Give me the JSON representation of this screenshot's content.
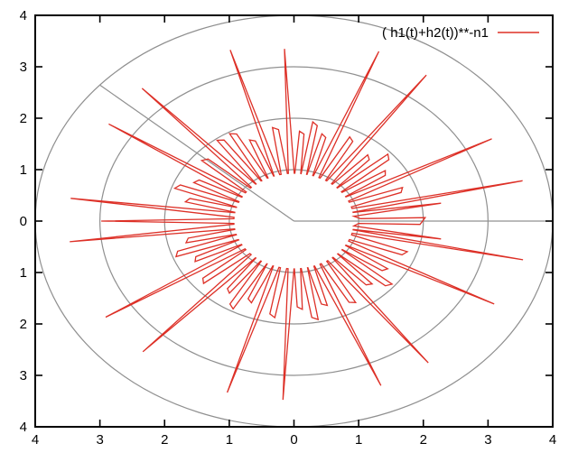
{
  "chart_data": {
    "type": "polar-line",
    "title": "",
    "legend_position": "top-right-inside",
    "grid_on": true,
    "xlim": [
      -4,
      4
    ],
    "ylim": [
      -4,
      4
    ],
    "x_tick_labels": [
      "4",
      "3",
      "2",
      "1",
      "0",
      "1",
      "2",
      "3",
      "4"
    ],
    "y_tick_labels": [
      "4",
      "3",
      "2",
      "1",
      "0",
      "1",
      "2",
      "3",
      "4"
    ],
    "r_gridlines": [
      1,
      2,
      3,
      4
    ],
    "radial_gridlines_deg": [
      0,
      138.6
    ],
    "grid_color": "#909090",
    "axis_color": "#000000",
    "background_color": "#ffffff",
    "series": [
      {
        "name": "( h1(t)+h2(t))**-n1",
        "color": "#dd3027",
        "style": "lines",
        "base_r": 0.93,
        "petals_format": [
          "angle_deg",
          "tip_r",
          "type: p=pointed spike, f=flat-top short petal, s=flat sliver"
        ],
        "petals": [
          [
            0,
            2.03,
            "s"
          ],
          [
            8.7,
            2.3,
            "p"
          ],
          [
            12.5,
            3.62,
            "p"
          ],
          [
            20.2,
            1.8,
            "f"
          ],
          [
            27.6,
            3.45,
            "p"
          ],
          [
            33.8,
            1.72,
            "f"
          ],
          [
            40.8,
            1.95,
            "f"
          ],
          [
            47.4,
            1.72,
            "f"
          ],
          [
            54.2,
            3.5,
            "p"
          ],
          [
            61.2,
            1.85,
            "f"
          ],
          [
            68.3,
            3.55,
            "p"
          ],
          [
            74.8,
            1.75,
            "f"
          ],
          [
            80.5,
            1.95,
            "f"
          ],
          [
            86.2,
            1.75,
            "f"
          ],
          [
            92.5,
            3.35,
            "p"
          ],
          [
            99.3,
            1.85,
            "f"
          ],
          [
            106.5,
            3.47,
            "p"
          ],
          [
            112.5,
            1.72,
            "f"
          ],
          [
            119.3,
            1.97,
            "f"
          ],
          [
            126.1,
            1.97,
            "f"
          ],
          [
            132.3,
            3.49,
            "p"
          ],
          [
            139.4,
            1.85,
            "f"
          ],
          [
            146.6,
            3.43,
            "p"
          ],
          [
            153.1,
            1.72,
            "f"
          ],
          [
            159.9,
            1.95,
            "f"
          ],
          [
            166.4,
            1.72,
            "f"
          ],
          [
            172.7,
            3.48,
            "p"
          ],
          [
            180,
            2.98,
            "p"
          ],
          [
            186.6,
            3.49,
            "p"
          ],
          [
            193.1,
            1.72,
            "f"
          ],
          [
            199.7,
            1.95,
            "f"
          ],
          [
            206.2,
            1.72,
            "f"
          ],
          [
            212.7,
            3.46,
            "p"
          ],
          [
            219.9,
            1.85,
            "f"
          ],
          [
            227.4,
            3.45,
            "p"
          ],
          [
            233.5,
            1.72,
            "f"
          ],
          [
            240.1,
            1.95,
            "f"
          ],
          [
            246.5,
            1.72,
            "f"
          ],
          [
            252.8,
            3.49,
            "p"
          ],
          [
            260,
            1.9,
            "f"
          ],
          [
            267.2,
            3.48,
            "p"
          ],
          [
            273.3,
            1.72,
            "f"
          ],
          [
            280,
            1.95,
            "f"
          ],
          [
            286.4,
            1.72,
            "f"
          ],
          [
            292.8,
            3.47,
            "p"
          ],
          [
            300,
            1.85,
            "f"
          ],
          [
            307,
            3.45,
            "p"
          ],
          [
            313.6,
            1.72,
            "f"
          ],
          [
            320,
            1.95,
            "f"
          ],
          [
            326.4,
            1.72,
            "f"
          ],
          [
            332.5,
            3.49,
            "p"
          ],
          [
            340.2,
            1.85,
            "f"
          ],
          [
            348,
            3.62,
            "p"
          ],
          [
            351.3,
            2.3,
            "p"
          ]
        ]
      }
    ]
  },
  "legend": {
    "label": "( h1(t)+h2(t))**-n1"
  }
}
